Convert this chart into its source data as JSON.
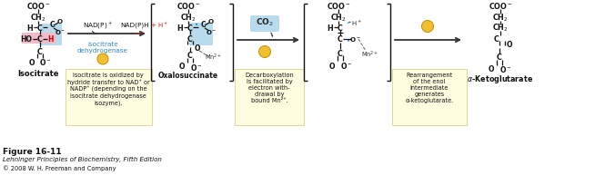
{
  "bg_color": "#ffffff",
  "figure_width": 6.76,
  "figure_height": 2.05,
  "dpi": 100,
  "yellow_box_color": "#fffde0",
  "yellow_box_edge": "#d8d090",
  "blue_highlight_color": "#b8dcee",
  "pink_highlight_color": "#f2bbc8",
  "arrow_color": "#333333",
  "mol_line_color": "#111111",
  "blue_enzyme_color": "#3388bb",
  "figure_label": "Figure 16-11",
  "publisher_line1": "Lehninger Principles of Biochemistry, Fifth Edition",
  "publisher_line2": "© 2008 W. H. Freeman and Company",
  "step1_text": "Isocitrate is oxidized by\nhydride transfer to NAD⁺ or\nNADP⁺ (depending on the\nisocitrate dehydrogenase\nisozyme).",
  "step2_text": "Decarboxylation\nis facilitated by\nelectron with-\ndrawal by\nbound Mn²⁺.",
  "step3_text": "Rearrangement\nof the enol\nintermediate\ngenerates\nα-ketoglutarate.",
  "circle_face": "#f0c030",
  "circle_edge": "#c09000"
}
